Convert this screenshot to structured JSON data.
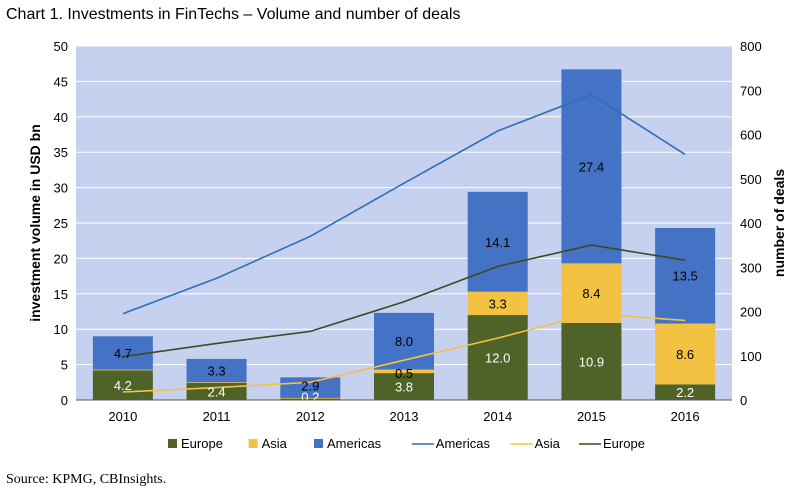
{
  "title": "Chart 1. Investments in FinTechs – Volume and number of deals",
  "source": "Source: KPMG, CBInsights.",
  "chart_data": {
    "type": "bar",
    "stacked": true,
    "categories": [
      "2010",
      "2011",
      "2012",
      "2013",
      "2014",
      "2015",
      "2016"
    ],
    "ylabel": "investment volume in USD bn",
    "y2label": "number of deals",
    "ylim": [
      0,
      50
    ],
    "y_ticks": [
      "0",
      "5",
      "10",
      "15",
      "20",
      "25",
      "30",
      "35",
      "40",
      "45",
      "50"
    ],
    "y2lim": [
      0,
      800
    ],
    "y2_ticks": [
      "0",
      "100",
      "200",
      "300",
      "400",
      "500",
      "600",
      "700",
      "800"
    ],
    "bar_series": [
      {
        "name": "Europe",
        "color": "#4f6228",
        "label_color": "#ffffff",
        "values": [
          4.2,
          2.4,
          0.2,
          3.8,
          12.0,
          10.9,
          2.2
        ],
        "labels": [
          "4.2",
          "2.4",
          "0.2",
          "3.8",
          "12.0",
          "10.9",
          "2.2"
        ]
      },
      {
        "name": "Asia",
        "color": "#f4c242",
        "label_color": "#000000",
        "values": [
          0.1,
          0.1,
          0.1,
          0.5,
          3.3,
          8.4,
          8.6
        ],
        "labels": [
          "",
          "",
          "",
          "0.5",
          "3.3",
          "8.4",
          "8.6"
        ]
      },
      {
        "name": "Americas",
        "color": "#4472c4",
        "label_color": "#000000",
        "values": [
          4.7,
          3.3,
          2.9,
          8.0,
          14.1,
          27.4,
          13.5
        ],
        "labels": [
          "4.7",
          "3.3",
          "2.9",
          "8.0",
          "14.1",
          "27.4",
          "13.5"
        ]
      }
    ],
    "line_series": [
      {
        "name": "Americas",
        "color": "#2e6fb7",
        "values": [
          195,
          275,
          370,
          490,
          608,
          690,
          555
        ]
      },
      {
        "name": "Asia",
        "color": "#f4c242",
        "values": [
          18,
          28,
          40,
          90,
          140,
          195,
          180
        ]
      },
      {
        "name": "Europe",
        "color": "#3d4a1f",
        "values": [
          98,
          128,
          155,
          222,
          302,
          350,
          316
        ]
      }
    ],
    "colors": {
      "plot_background": "#c5d1ef",
      "grid": "#ffffff"
    },
    "grid": true,
    "legend_position": "bottom"
  }
}
